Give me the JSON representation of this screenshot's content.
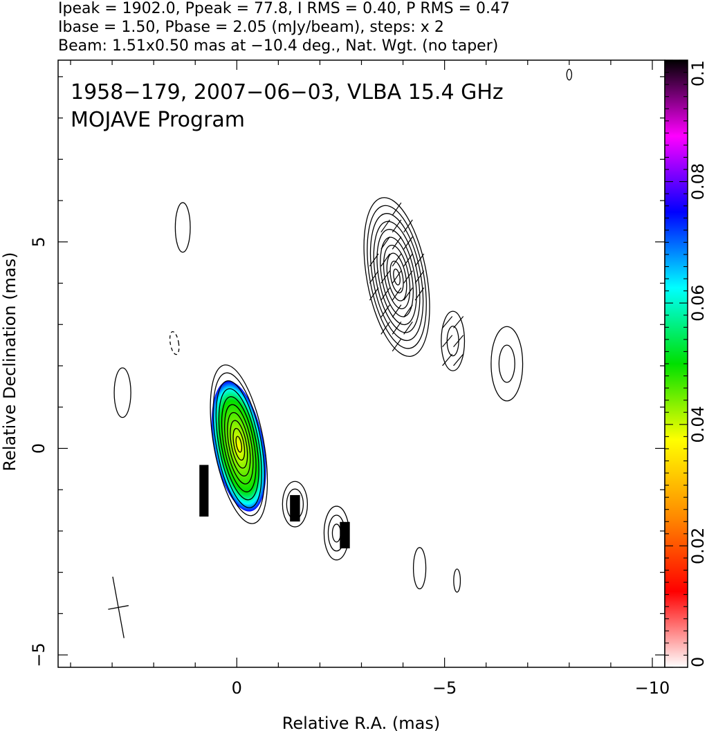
{
  "header": {
    "line1": "Ipeak = 1902.0, Ppeak = 77.8, I RMS = 0.40, P RMS = 0.47",
    "line2": "Ibase = 1.50, Pbase = 2.05 (mJy/beam), steps: x 2",
    "line3": "Beam: 1.51x0.50 mas at −10.4 deg., Nat. Wgt. (no taper)"
  },
  "chart_data": {
    "type": "heatmap",
    "title": "1958−179, 2007−06−03, VLBA 15.4 GHz",
    "subtitle": "MOJAVE Program",
    "xlabel": "Relative R.A. (mas)",
    "ylabel": "Relative Declination (mas)",
    "xlim": [
      4.3,
      -10.3
    ],
    "ylim": [
      -5.3,
      9.4
    ],
    "x_ticks": [
      {
        "value": 0,
        "label": "0"
      },
      {
        "value": -5,
        "label": "−5"
      },
      {
        "value": -10,
        "label": "−10"
      }
    ],
    "y_ticks": [
      {
        "value": 5,
        "label": "5"
      },
      {
        "value": 0,
        "label": "0"
      },
      {
        "value": -5,
        "label": "−5"
      }
    ],
    "colorbar": {
      "range": [
        0,
        0.1
      ],
      "ticks": [
        "0",
        "0.02",
        "0.04",
        "0.06",
        "0.08",
        "0.1"
      ],
      "colors": [
        "#ffffff",
        "#ff0000",
        "#ff8c00",
        "#ffff00",
        "#00e000",
        "#00ffff",
        "#0000ff",
        "#ff00ff",
        "#000000"
      ]
    },
    "components": [
      {
        "name": "core",
        "x": -0.05,
        "y": 0.1,
        "rx": 0.6,
        "ry": 1.95,
        "angle_deg": -10.4,
        "n_levels": 10
      },
      {
        "name": "jet-knot",
        "x": -3.85,
        "y": 4.15,
        "rx": 0.72,
        "ry": 1.95,
        "angle_deg": -10.4,
        "n_levels": 10
      },
      {
        "name": "blob-1",
        "x": 1.3,
        "y": 5.35,
        "rx": 0.18,
        "ry": 0.6,
        "angle_deg": 0,
        "n_levels": 1
      },
      {
        "name": "blob-2",
        "x": 2.75,
        "y": 1.35,
        "rx": 0.2,
        "ry": 0.6,
        "angle_deg": 0,
        "n_levels": 1
      },
      {
        "name": "blob-3",
        "x": -1.4,
        "y": -1.35,
        "rx": 0.3,
        "ry": 0.55,
        "angle_deg": 0,
        "n_levels": 3
      },
      {
        "name": "blob-4",
        "x": -2.4,
        "y": -2.05,
        "rx": 0.3,
        "ry": 0.65,
        "angle_deg": 0,
        "n_levels": 3
      },
      {
        "name": "blob-5",
        "x": -5.2,
        "y": 2.6,
        "rx": 0.28,
        "ry": 0.72,
        "angle_deg": 0,
        "n_levels": 2
      },
      {
        "name": "blob-6",
        "x": -6.5,
        "y": 2.05,
        "rx": 0.38,
        "ry": 0.9,
        "angle_deg": 0,
        "n_levels": 2
      },
      {
        "name": "blob-7",
        "x": -4.4,
        "y": -2.9,
        "rx": 0.15,
        "ry": 0.5,
        "angle_deg": 0,
        "n_levels": 1
      },
      {
        "name": "blob-8",
        "x": -5.3,
        "y": -3.2,
        "rx": 0.08,
        "ry": 0.28,
        "angle_deg": 0,
        "n_levels": 1
      },
      {
        "name": "blob-9",
        "x": -8.0,
        "y": 9.05,
        "rx": 0.06,
        "ry": 0.13,
        "angle_deg": 0,
        "n_levels": 1
      }
    ],
    "negative_contours": [
      {
        "x": 1.5,
        "y": 2.55,
        "rx": 0.1,
        "ry": 0.28,
        "angle_deg": -10
      }
    ],
    "polarization_core": {
      "x": -0.05,
      "y": 0.05,
      "rx": 0.6,
      "ry": 1.6,
      "angle_deg": -10.4,
      "center_value": 0.04,
      "edge_value": 0.075
    },
    "polarization_patches": [
      {
        "x": -1.4,
        "y": -1.45,
        "value": 0.1
      },
      {
        "x": -2.6,
        "y": -2.1,
        "value": 0.1
      }
    ],
    "beam": {
      "x": 2.85,
      "y": -3.85,
      "major_mas": 1.51,
      "minor_mas": 0.5,
      "pa_deg": -10.4
    }
  }
}
